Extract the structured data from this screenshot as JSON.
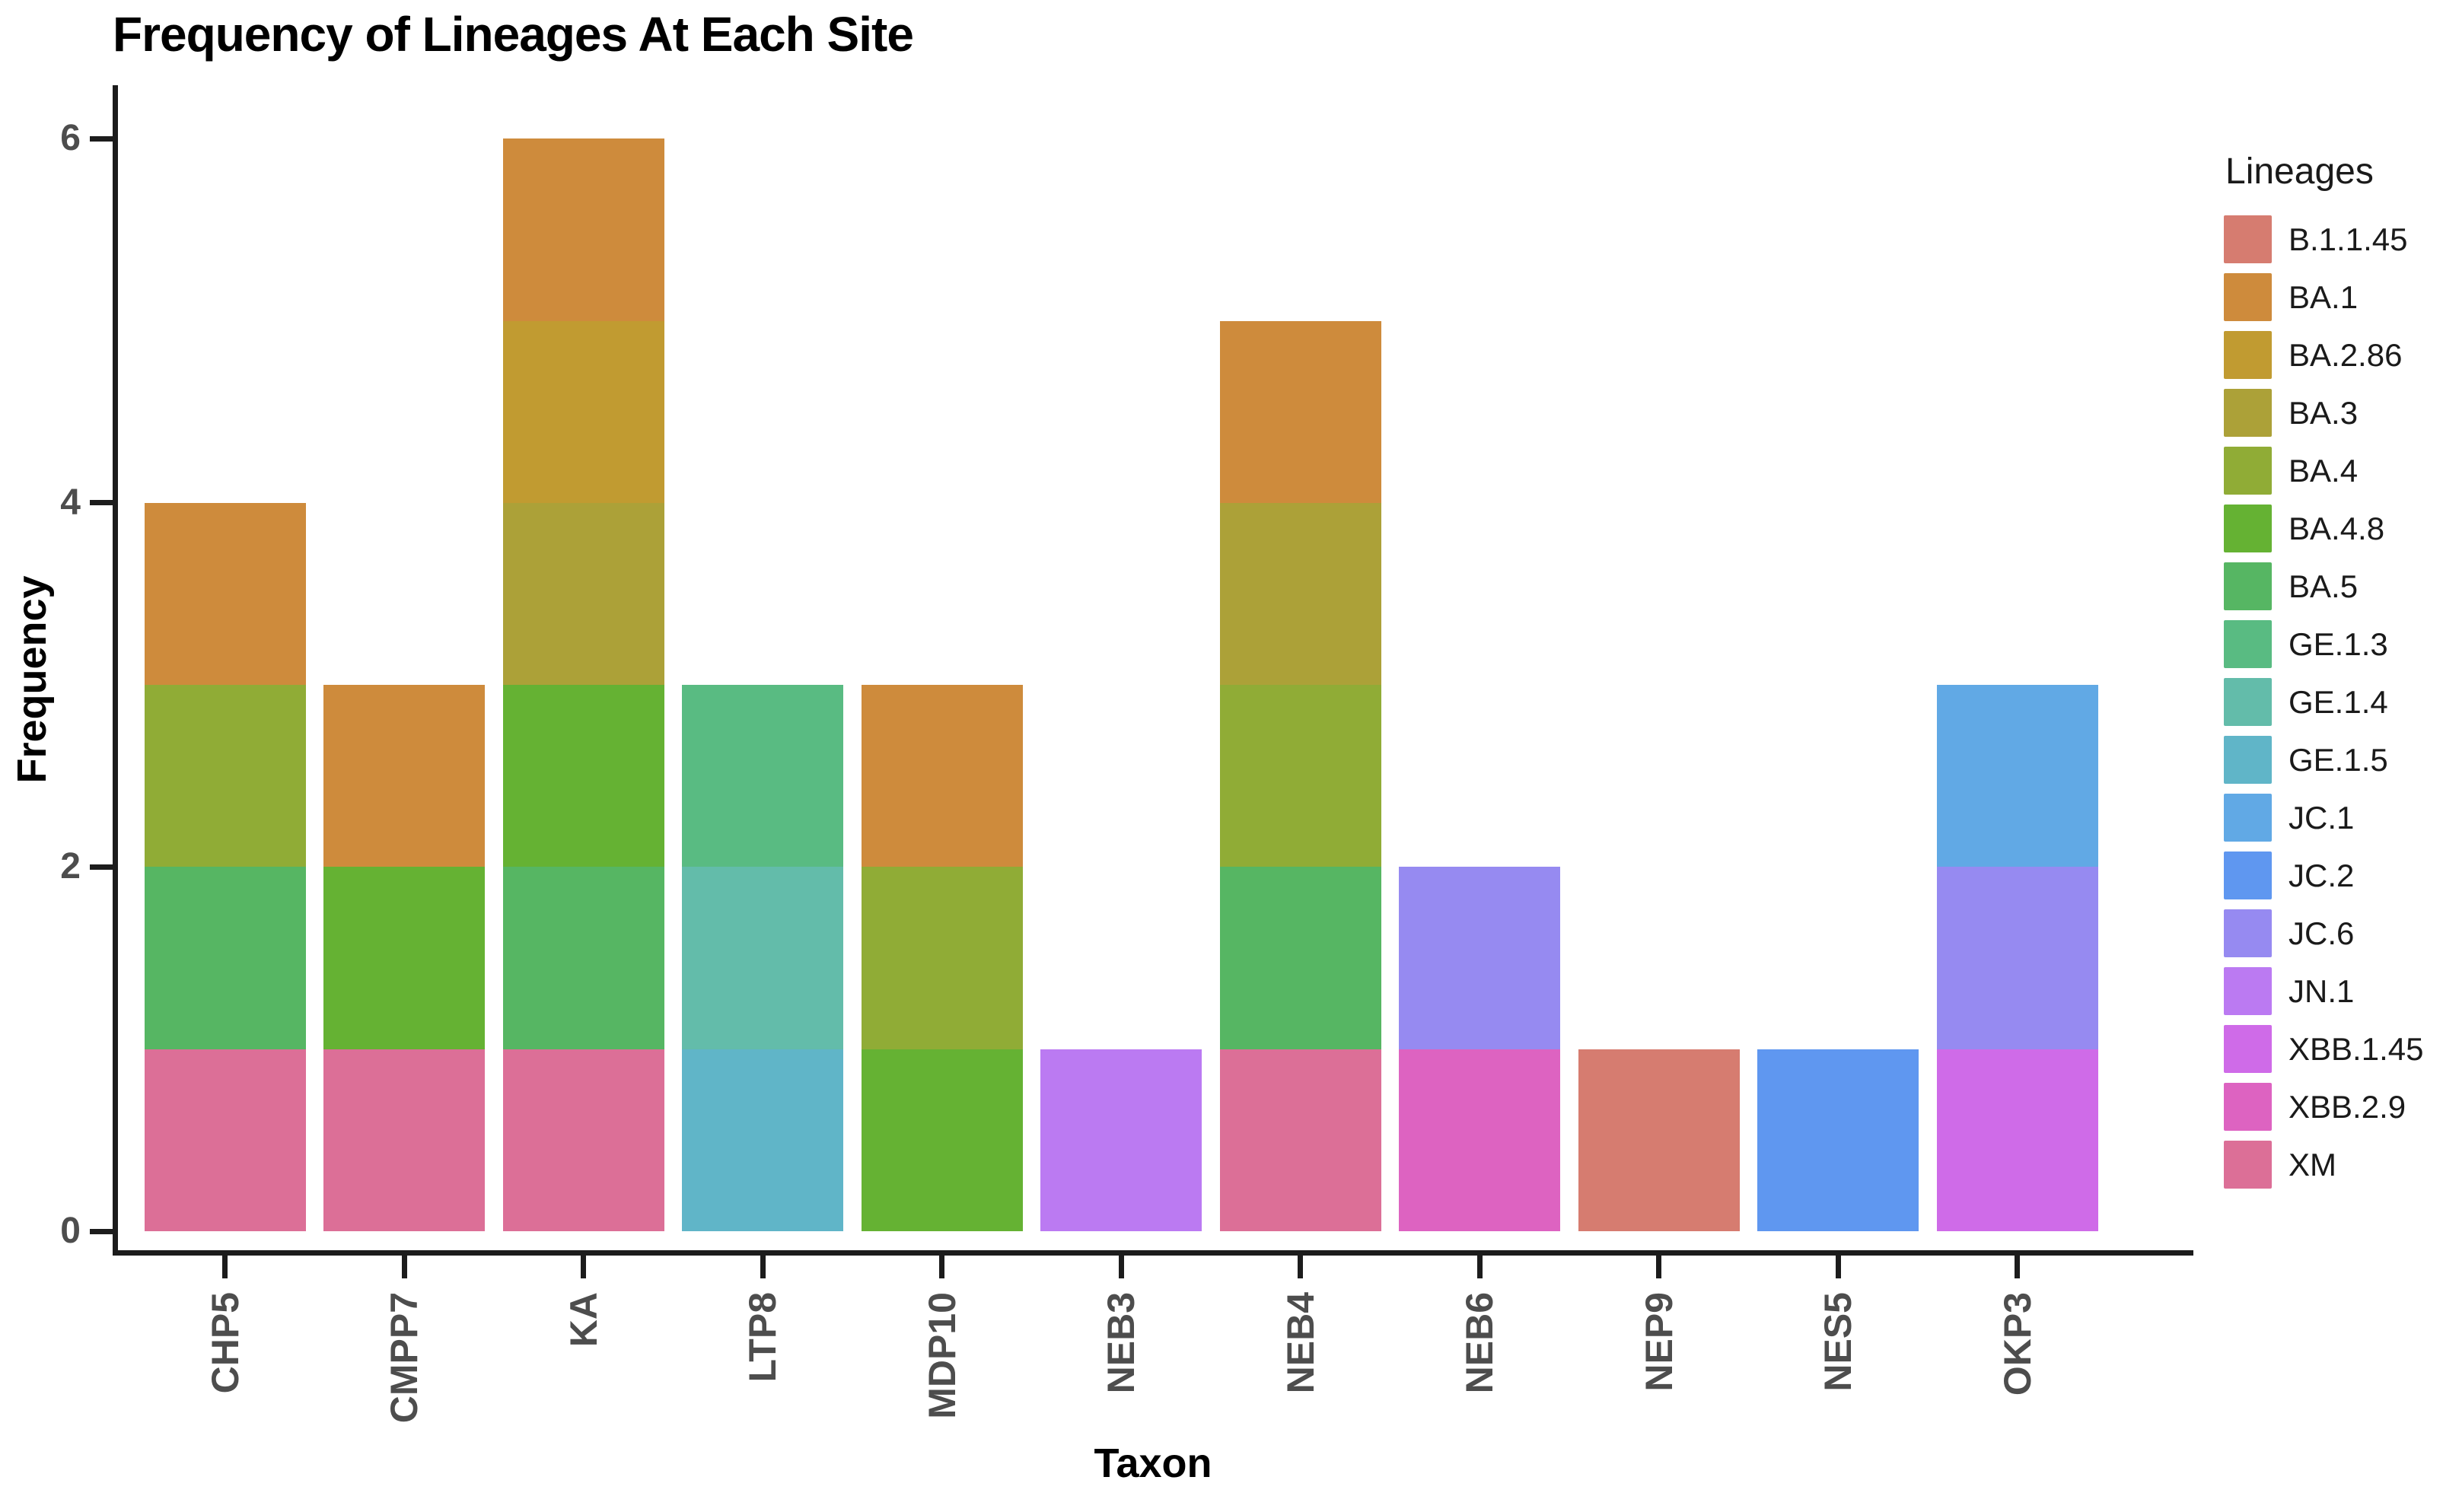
{
  "chart_data": {
    "type": "bar",
    "stacked": true,
    "title": "Frequency of Lineages At Each Site",
    "xlabel": "Taxon",
    "ylabel": "Frequency",
    "ylim": [
      0,
      6
    ],
    "yticks": [
      "0",
      "2",
      "4",
      "6"
    ],
    "grid": false,
    "legend_position": "right",
    "legend_title": "Lineages",
    "categories": [
      "CHP5",
      "CMPP7",
      "KA",
      "LTP8",
      "MDP10",
      "NEB3",
      "NEB4",
      "NEB6",
      "NEP9",
      "NES5",
      "OKP3"
    ],
    "series": [
      {
        "name": "B.1.1.45",
        "color": "#D67C70",
        "values": [
          0,
          0,
          0,
          0,
          0,
          0,
          0,
          0,
          1,
          0,
          0
        ]
      },
      {
        "name": "BA.1",
        "color": "#CE8B3C",
        "values": [
          1,
          1,
          1,
          0,
          1,
          0,
          1,
          0,
          0,
          0,
          0
        ]
      },
      {
        "name": "BA.2.86",
        "color": "#C19B31",
        "values": [
          0,
          0,
          1,
          0,
          0,
          0,
          0,
          0,
          0,
          0,
          0
        ]
      },
      {
        "name": "BA.3",
        "color": "#ACA138",
        "values": [
          0,
          0,
          1,
          0,
          0,
          0,
          1,
          0,
          0,
          0,
          0
        ]
      },
      {
        "name": "BA.4",
        "color": "#90AC36",
        "values": [
          1,
          0,
          0,
          0,
          1,
          0,
          1,
          0,
          0,
          0,
          0
        ]
      },
      {
        "name": "BA.4.8",
        "color": "#65B233",
        "values": [
          0,
          1,
          1,
          0,
          1,
          0,
          0,
          0,
          0,
          0,
          0
        ]
      },
      {
        "name": "BA.5",
        "color": "#56B663",
        "values": [
          1,
          0,
          1,
          0,
          0,
          0,
          1,
          0,
          0,
          0,
          0
        ]
      },
      {
        "name": "GE.1.3",
        "color": "#59BB82",
        "values": [
          0,
          0,
          0,
          1,
          0,
          0,
          0,
          0,
          0,
          0,
          0
        ]
      },
      {
        "name": "GE.1.4",
        "color": "#63BCAA",
        "values": [
          0,
          0,
          0,
          1,
          0,
          0,
          0,
          0,
          0,
          0,
          0
        ]
      },
      {
        "name": "GE.1.5",
        "color": "#60B5C8",
        "values": [
          0,
          0,
          0,
          1,
          0,
          0,
          0,
          0,
          0,
          0,
          0
        ]
      },
      {
        "name": "JC.1",
        "color": "#61A9E5",
        "values": [
          0,
          0,
          0,
          0,
          0,
          0,
          0,
          0,
          0,
          0,
          1
        ]
      },
      {
        "name": "JC.2",
        "color": "#5F97F0",
        "values": [
          0,
          0,
          0,
          0,
          0,
          0,
          0,
          0,
          0,
          1,
          0
        ]
      },
      {
        "name": "JC.6",
        "color": "#968AF1",
        "values": [
          0,
          0,
          0,
          0,
          0,
          0,
          0,
          1,
          0,
          0,
          1
        ]
      },
      {
        "name": "JN.1",
        "color": "#BB7AF2",
        "values": [
          0,
          0,
          0,
          0,
          0,
          1,
          0,
          0,
          0,
          0,
          0
        ]
      },
      {
        "name": "XBB.1.45",
        "color": "#CF6BE8",
        "values": [
          0,
          0,
          0,
          0,
          0,
          0,
          0,
          0,
          0,
          0,
          1
        ]
      },
      {
        "name": "XBB.2.9",
        "color": "#DD63C1",
        "values": [
          0,
          0,
          0,
          0,
          0,
          0,
          0,
          1,
          0,
          0,
          0
        ]
      },
      {
        "name": "XM",
        "color": "#DC6F97",
        "values": [
          1,
          1,
          1,
          0,
          0,
          0,
          1,
          0,
          0,
          0,
          0
        ]
      }
    ],
    "axis_text_color": "#4d4d4d",
    "axis_line_color": "#1c1c1c"
  }
}
